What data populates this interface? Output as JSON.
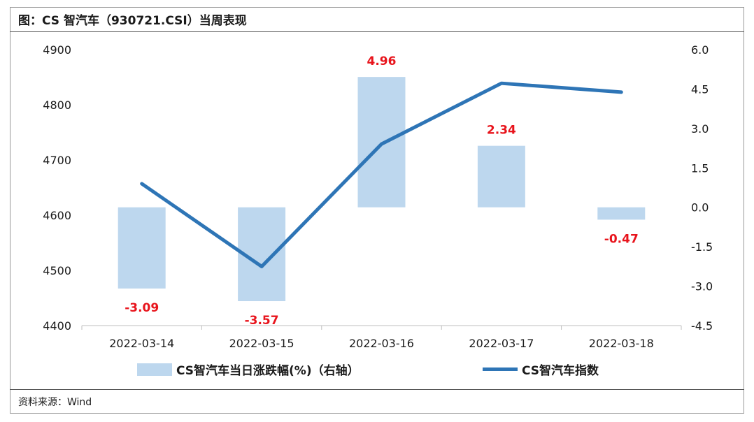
{
  "header": {
    "title": "图：CS 智汽车（930721.CSI）当周表现"
  },
  "footer": {
    "source": "资料来源：Wind"
  },
  "colors": {
    "bar": "#bdd7ee",
    "line": "#2e75b6",
    "label": "#e8141c"
  },
  "chart_data": {
    "type": "bar",
    "categories": [
      "2022-03-14",
      "2022-03-15",
      "2022-03-16",
      "2022-03-17",
      "2022-03-18"
    ],
    "series": [
      {
        "name": "CS智汽车当日涨跌幅(%)（右轴）",
        "type": "bar",
        "axis": "right",
        "values": [
          -3.09,
          -3.57,
          4.96,
          2.34,
          -0.47
        ],
        "value_labels": [
          "-3.09",
          "-3.57",
          "4.96",
          "2.34",
          "-0.47"
        ]
      },
      {
        "name": "CS智汽车指数",
        "type": "line",
        "axis": "left",
        "values": [
          4657,
          4507,
          4729,
          4839,
          4823
        ]
      }
    ],
    "y_left": {
      "range": [
        4400,
        4900
      ],
      "ticks": [
        "4400",
        "4500",
        "4600",
        "4700",
        "4800",
        "4900"
      ]
    },
    "y_right": {
      "range": [
        -4.5,
        6.0
      ],
      "ticks": [
        "6.0",
        "4.5",
        "3.0",
        "1.5",
        "0.0",
        "-1.5",
        "-3.0",
        "-4.5"
      ]
    },
    "grid": false,
    "legend_position": "bottom"
  }
}
